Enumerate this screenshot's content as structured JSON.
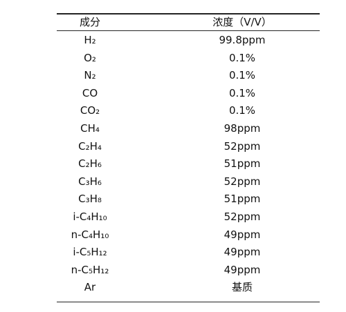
{
  "table": {
    "header": [
      "成分",
      "浓度（V/V）"
    ],
    "rows": [
      [
        "H₂",
        "99.8ppm"
      ],
      [
        "O₂",
        "0.1%"
      ],
      [
        "N₂",
        "0.1%"
      ],
      [
        "CO",
        "0.1%"
      ],
      [
        "CO₂",
        "0.1%"
      ],
      [
        "CH₄",
        "98ppm"
      ],
      [
        "C₂H₄",
        "52ppm"
      ],
      [
        "C₂H₆",
        "51ppm"
      ],
      [
        "C₃H₆",
        "52ppm"
      ],
      [
        "C₃H₈",
        "51ppm"
      ],
      [
        "i-C₄H₁₀",
        "52ppm"
      ],
      [
        "n-C₄H₁₀",
        "49ppm"
      ],
      [
        "i-C₅H₁₂",
        "49ppm"
      ],
      [
        "n-C₅H₁₂",
        "49ppm"
      ],
      [
        "Ar",
        "基质"
      ]
    ]
  }
}
